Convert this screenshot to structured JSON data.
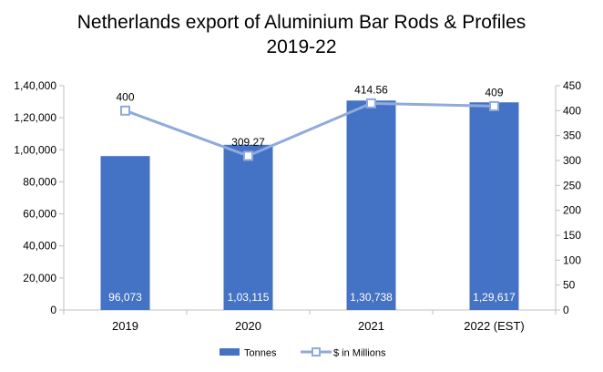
{
  "chart_data": {
    "type": "bar",
    "title_lines": [
      "Netherlands export of Aluminium Bar Rods & Profiles",
      "2019-22"
    ],
    "categories": [
      "2019",
      "2020",
      "2021",
      "2022 (EST)"
    ],
    "series": [
      {
        "name": "Tonnes",
        "type": "bar",
        "axis": "left",
        "values": [
          96073,
          103115,
          130738,
          129617
        ],
        "labels": [
          "96,073",
          "1,03,115",
          "1,30,738",
          "1,29,617"
        ]
      },
      {
        "name": "$ in Millions",
        "type": "line",
        "axis": "right",
        "values": [
          400,
          309.27,
          414.56,
          409
        ],
        "labels": [
          "400",
          "309.27",
          "414.56",
          "409"
        ]
      }
    ],
    "y_left": {
      "ylim": [
        0,
        140000
      ],
      "ticks": [
        0,
        20000,
        40000,
        60000,
        80000,
        100000,
        120000,
        140000
      ],
      "tick_labels": [
        "0",
        "20,000",
        "40,000",
        "60,000",
        "80,000",
        "1,00,000",
        "1,20,000",
        "1,40,000"
      ]
    },
    "y_right": {
      "ylim": [
        0,
        450
      ],
      "ticks": [
        0,
        50,
        100,
        150,
        200,
        250,
        300,
        350,
        400,
        450
      ],
      "tick_labels": [
        "0",
        "50",
        "100",
        "150",
        "200",
        "250",
        "300",
        "350",
        "400",
        "450"
      ]
    },
    "colors": {
      "bar": "#4472C4",
      "line": "#8FAADC",
      "marker_fill": "#ffffff"
    },
    "legend_position": "bottom",
    "grid": false
  }
}
